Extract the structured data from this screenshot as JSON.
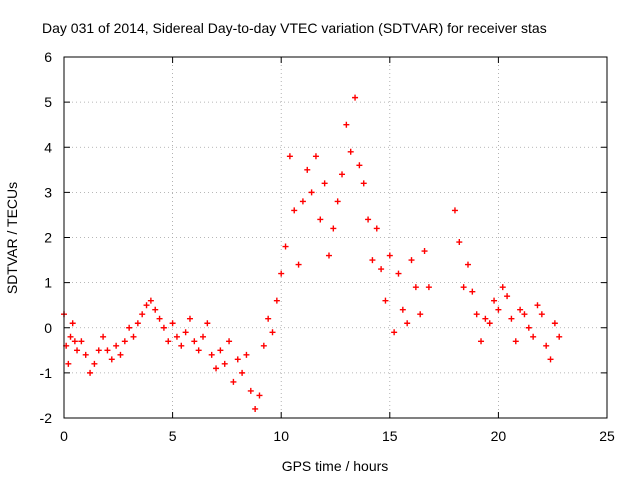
{
  "chart_data": {
    "type": "scatter",
    "marker": "plus",
    "title": "Day 031 of 2014, Sidereal Day-to-day VTEC variation (SDTVAR) for receiver stas",
    "xlabel": "GPS time / hours",
    "ylabel": "SDTVAR / TECUs",
    "xlim": [
      0,
      25
    ],
    "ylim": [
      -2,
      6
    ],
    "xticks": [
      "0",
      "5",
      "10",
      "15",
      "20",
      "25"
    ],
    "yticks": [
      "-2",
      "-1",
      "0",
      "1",
      "2",
      "3",
      "4",
      "5",
      "6"
    ],
    "grid": true,
    "series": [
      {
        "name": "stas",
        "color": "#ff0000",
        "x": [
          0.0,
          0.1,
          0.2,
          0.3,
          0.4,
          0.5,
          0.6,
          0.8,
          1.0,
          1.2,
          1.4,
          1.6,
          1.8,
          2.0,
          2.2,
          2.4,
          2.6,
          2.8,
          3.0,
          3.2,
          3.4,
          3.6,
          3.8,
          4.0,
          4.2,
          4.4,
          4.6,
          4.8,
          5.0,
          5.2,
          5.4,
          5.6,
          5.8,
          6.0,
          6.2,
          6.4,
          6.6,
          6.8,
          7.0,
          7.2,
          7.4,
          7.6,
          7.8,
          8.0,
          8.2,
          8.4,
          8.6,
          8.8,
          9.0,
          9.2,
          9.4,
          9.6,
          9.8,
          10.0,
          10.2,
          10.4,
          10.6,
          10.8,
          11.0,
          11.2,
          11.4,
          11.6,
          11.8,
          12.0,
          12.2,
          12.4,
          12.6,
          12.8,
          13.0,
          13.2,
          13.4,
          13.6,
          13.8,
          14.0,
          14.2,
          14.4,
          14.6,
          14.8,
          15.0,
          15.2,
          15.4,
          15.6,
          15.8,
          16.0,
          16.2,
          16.4,
          16.6,
          16.8,
          18.0,
          18.2,
          18.4,
          18.6,
          18.8,
          19.0,
          19.2,
          19.4,
          19.6,
          19.8,
          20.0,
          20.2,
          20.4,
          20.6,
          20.8,
          21.0,
          21.2,
          21.4,
          21.6,
          21.8,
          22.0,
          22.2,
          22.4,
          22.6,
          22.8
        ],
        "y": [
          0.3,
          -0.4,
          -0.8,
          -0.2,
          0.1,
          -0.3,
          -0.5,
          -0.3,
          -0.6,
          -1.0,
          -0.8,
          -0.5,
          -0.2,
          -0.5,
          -0.7,
          -0.4,
          -0.6,
          -0.3,
          0.0,
          -0.2,
          0.1,
          0.3,
          0.5,
          0.6,
          0.4,
          0.2,
          0.0,
          -0.3,
          0.1,
          -0.2,
          -0.4,
          -0.1,
          0.2,
          -0.3,
          -0.5,
          -0.2,
          0.1,
          -0.6,
          -0.9,
          -0.5,
          -0.8,
          -0.3,
          -1.2,
          -0.7,
          -1.0,
          -0.6,
          -1.4,
          -1.8,
          -1.5,
          -0.4,
          0.2,
          -0.1,
          0.6,
          1.2,
          1.8,
          3.8,
          2.6,
          1.4,
          2.8,
          3.5,
          3.0,
          3.8,
          2.4,
          3.2,
          1.6,
          2.2,
          2.8,
          3.4,
          4.5,
          3.9,
          5.1,
          3.6,
          3.2,
          2.4,
          1.5,
          2.2,
          1.3,
          0.6,
          1.6,
          -0.1,
          1.2,
          0.4,
          0.1,
          1.5,
          0.9,
          0.3,
          1.7,
          0.9,
          2.6,
          1.9,
          0.9,
          1.4,
          0.8,
          0.3,
          -0.3,
          0.2,
          0.1,
          0.6,
          0.4,
          0.9,
          0.7,
          0.2,
          -0.3,
          0.4,
          0.3,
          0.0,
          -0.2,
          0.5,
          0.3,
          -0.4,
          -0.7,
          0.1,
          -0.2
        ]
      }
    ]
  }
}
